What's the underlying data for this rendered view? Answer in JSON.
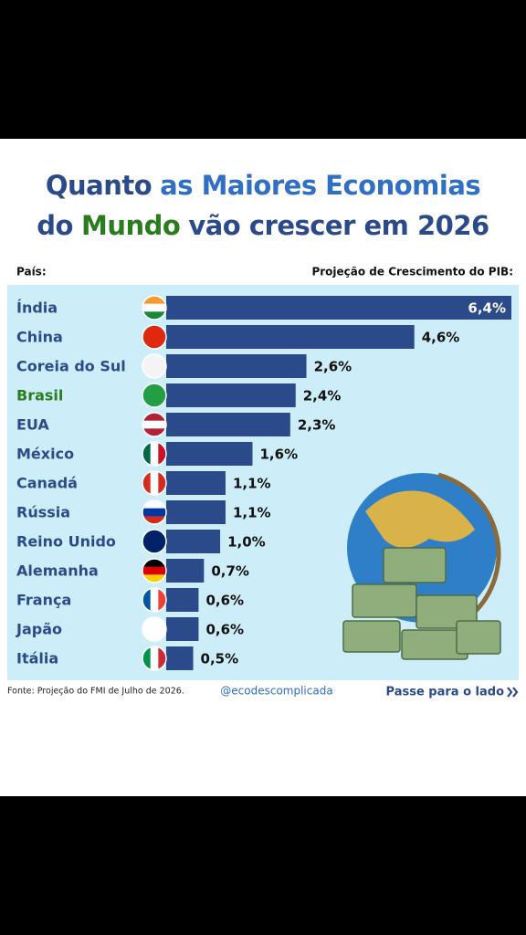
{
  "chart_data": {
    "type": "bar",
    "title_lines": [
      [
        {
          "text": "Quanto",
          "color": "#2b4a8a"
        },
        {
          "text": "as Maiores Economias",
          "color": "#2f6fc4"
        }
      ],
      [
        {
          "text": "do",
          "color": "#2b4a8a"
        },
        {
          "text": "Mundo",
          "color": "#2a7d1f"
        },
        {
          "text": "vão crescer em 2026",
          "color": "#2b4a8a"
        }
      ]
    ],
    "category_header": "País:",
    "value_header": "Projeção de Crescimento do PIB:",
    "categories": [
      "Índia",
      "China",
      "Coreia do Sul",
      "Brasil",
      "EUA",
      "México",
      "Canadá",
      "Rússia",
      "Reino Unido",
      "Alemanha",
      "França",
      "Japão",
      "Itália"
    ],
    "category_colors": [
      "#2b4a8a",
      "#2b4a8a",
      "#2b4a8a",
      "#2a7d1f",
      "#2b4a8a",
      "#2b4a8a",
      "#2b4a8a",
      "#2b4a8a",
      "#2b4a8a",
      "#2b4a8a",
      "#2b4a8a",
      "#2b4a8a",
      "#2b4a8a"
    ],
    "values": [
      6.4,
      4.6,
      2.6,
      2.4,
      2.3,
      1.6,
      1.1,
      1.1,
      1.0,
      0.7,
      0.6,
      0.6,
      0.5
    ],
    "value_labels": [
      "6,4%",
      "4,6%",
      "2,6%",
      "2,4%",
      "2,3%",
      "1,6%",
      "1,1%",
      "1,1%",
      "1,0%",
      "0,7%",
      "0,6%",
      "0,6%",
      "0,5%"
    ],
    "color": "#2b4a8a",
    "source": "Fonte: Projeção do FMI de Julho de 2026.",
    "handle": "@ecodescomplicada",
    "next": "Passe para o lado"
  }
}
